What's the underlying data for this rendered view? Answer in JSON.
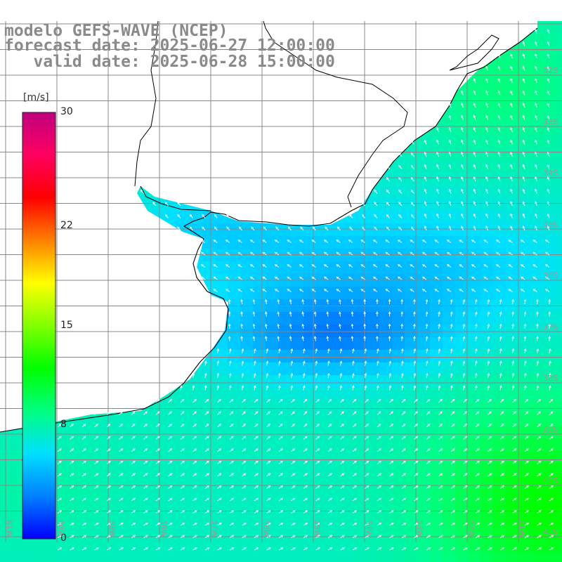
{
  "title": {
    "line1": "modelo GEFS-WAVE (NCEP)",
    "line2": "forecast date: 2025-06-27 12:00:00",
    "line3": "   valid date: 2025-06-28 15:00:00"
  },
  "colorbar": {
    "unit": "[m/s]",
    "ticks": [
      {
        "value": 30,
        "label": "30"
      },
      {
        "value": 22,
        "label": "22"
      },
      {
        "value": 15,
        "label": "15"
      },
      {
        "value": 8,
        "label": "8"
      },
      {
        "value": 0,
        "label": "0"
      }
    ],
    "min": 0,
    "max": 30,
    "colors": [
      "#0000ff",
      "#0080ff",
      "#00e0ff",
      "#00ff80",
      "#00ff00",
      "#80ff00",
      "#ffff00",
      "#ff8000",
      "#ff0000",
      "#ff0060",
      "#c00080"
    ]
  },
  "map": {
    "lat_labels": [
      "32S",
      "33S",
      "34S",
      "35S",
      "36S",
      "37S",
      "38S",
      "39S",
      "40S",
      "41S"
    ],
    "lon_labels": [
      "61W",
      "60W",
      "59W",
      "58W",
      "57W",
      "56W",
      "55W",
      "54W",
      "53W",
      "52W",
      "51W"
    ],
    "land_color": "#ffffff",
    "coast_color": "#000000",
    "grid_color": "#888888"
  }
}
